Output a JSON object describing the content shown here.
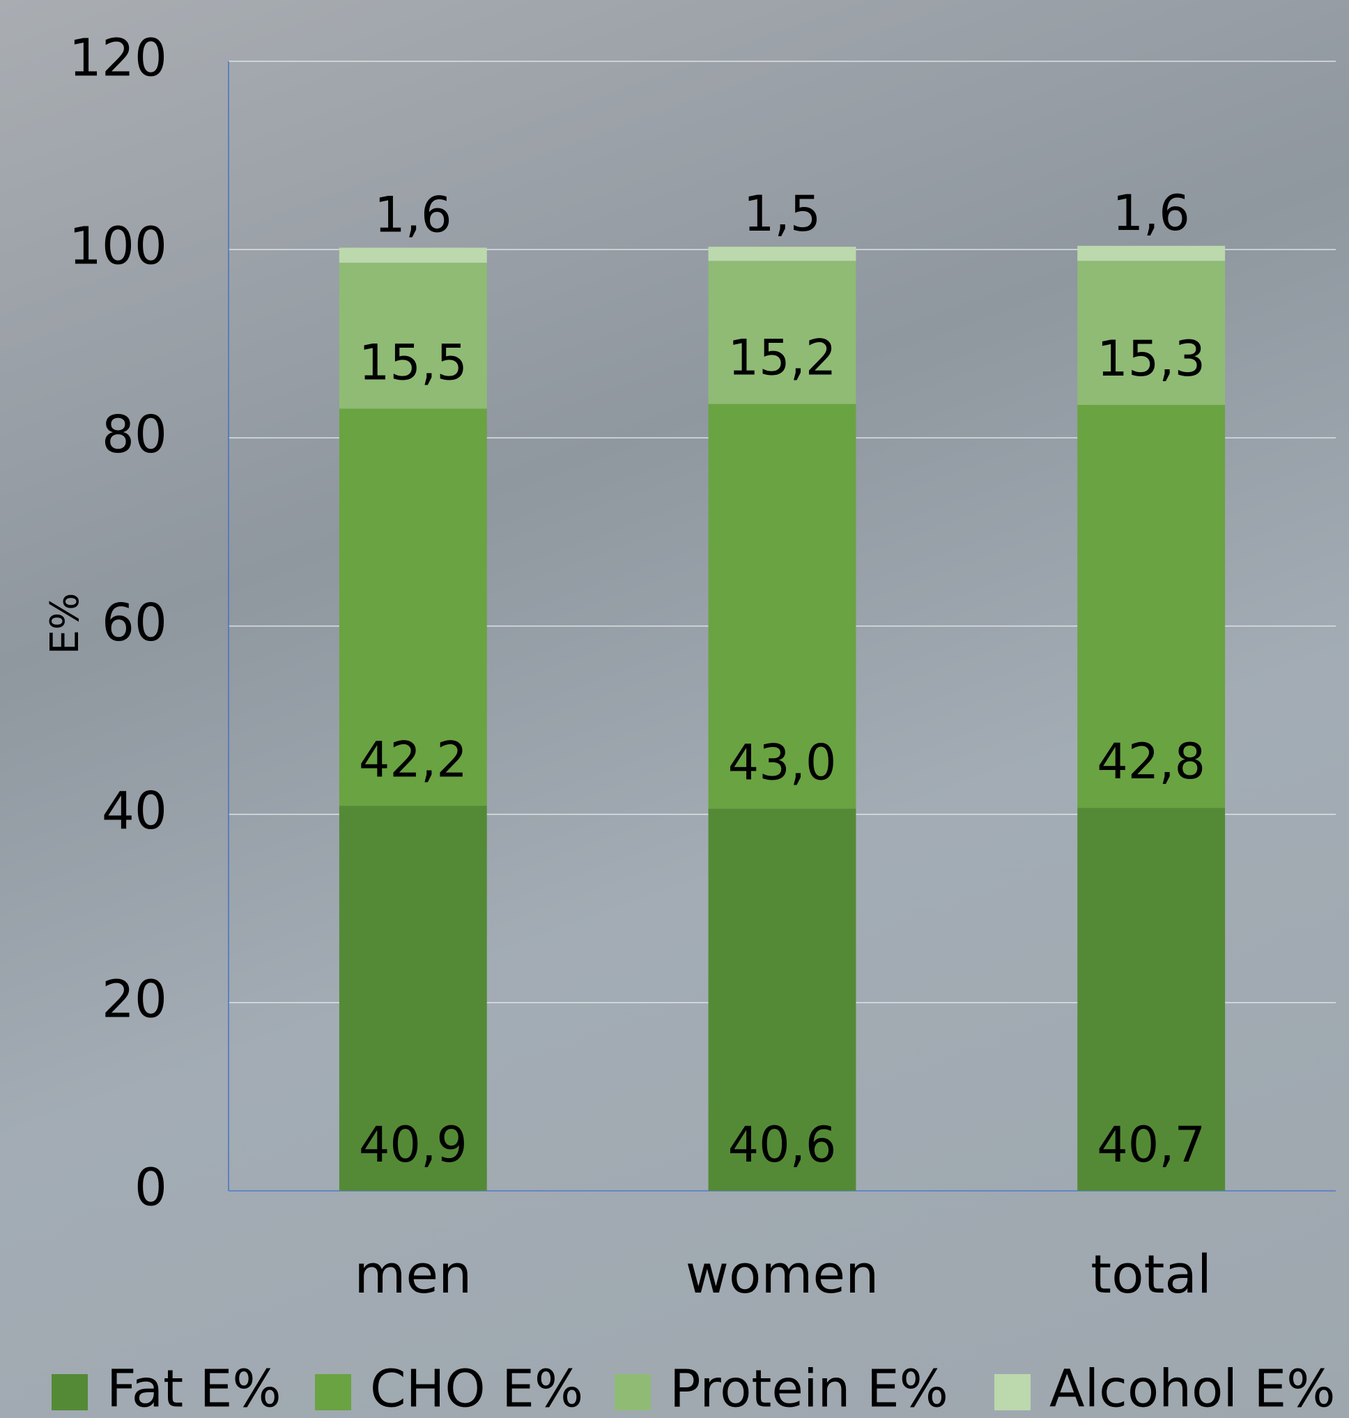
{
  "chart_data": {
    "type": "stacked_bar",
    "y_label": "E%",
    "categories": [
      "men",
      "women",
      "total"
    ],
    "series": [
      {
        "name": "Fat E%",
        "color": "#548a36",
        "values": [
          40.9,
          40.6,
          40.7
        ],
        "value_labels": [
          "40,9",
          "40,6",
          "40,7"
        ]
      },
      {
        "name": "CHO E%",
        "color": "#6aa342",
        "values": [
          42.2,
          43.0,
          42.8
        ],
        "value_labels": [
          "42,2",
          "43,0",
          "42,8"
        ]
      },
      {
        "name": "Protein E%",
        "color": "#8fbb75",
        "values": [
          15.5,
          15.2,
          15.3
        ],
        "value_labels": [
          "15,5",
          "15,2",
          "15,3"
        ]
      },
      {
        "name": "Alcohol E%",
        "color": "#bcd8ad",
        "values": [
          1.6,
          1.5,
          1.6
        ],
        "value_labels": [
          "1,6",
          "1,5",
          "1,6"
        ]
      }
    ],
    "ylim": [
      0,
      120
    ],
    "yticks": [
      0,
      20,
      40,
      60,
      80,
      100,
      120
    ],
    "grid": true,
    "legend": "bottom"
  }
}
